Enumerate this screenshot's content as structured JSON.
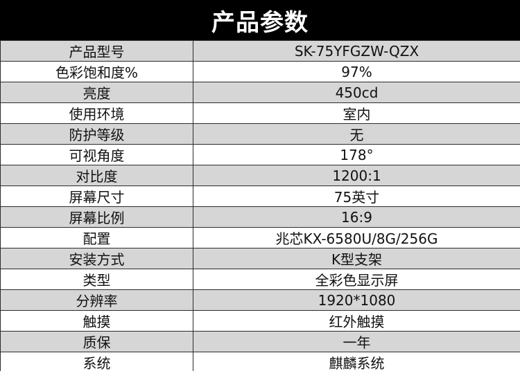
{
  "header": {
    "title": "产品参数"
  },
  "rows": [
    {
      "label": "产品型号",
      "value": "SK-75YFGZW-QZX"
    },
    {
      "label": "色彩饱和度%",
      "value": "97%"
    },
    {
      "label": "亮度",
      "value": "450cd"
    },
    {
      "label": "使用环境",
      "value": "室内"
    },
    {
      "label": "防护等级",
      "value": "无"
    },
    {
      "label": "可视角度",
      "value": "178°"
    },
    {
      "label": "对比度",
      "value": "1200:1"
    },
    {
      "label": "屏幕尺寸",
      "value": "75英寸"
    },
    {
      "label": "屏幕比例",
      "value": "16:9"
    },
    {
      "label": "配置",
      "value": "兆芯KX-6580U/8G/256G"
    },
    {
      "label": "安装方式",
      "value": "K型支架"
    },
    {
      "label": "类型",
      "value": "全彩色显示屏"
    },
    {
      "label": "分辨率",
      "value": "1920*1080"
    },
    {
      "label": "触摸",
      "value": "红外触摸"
    },
    {
      "label": "质保",
      "value": "一年"
    },
    {
      "label": "系统",
      "value": "麒麟系统"
    }
  ]
}
